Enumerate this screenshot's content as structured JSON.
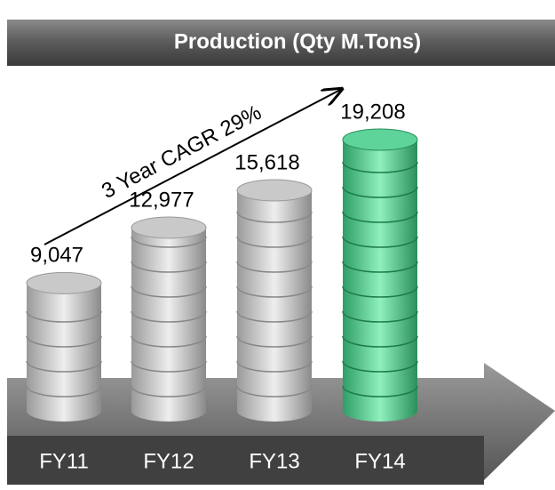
{
  "chart_data": {
    "type": "bar",
    "title": "Production (Qty M.Tons)",
    "annotation": "3 Year CAGR 29%",
    "categories": [
      "FY11",
      "FY12",
      "FY13",
      "FY14"
    ],
    "values": [
      9047,
      12977,
      15618,
      19208
    ],
    "value_labels": [
      "9,047",
      "12,977",
      "15,618",
      "19,208"
    ],
    "colors": [
      "#c9c9c9",
      "#c9c9c9",
      "#c9c9c9",
      "#5ed49a"
    ]
  }
}
